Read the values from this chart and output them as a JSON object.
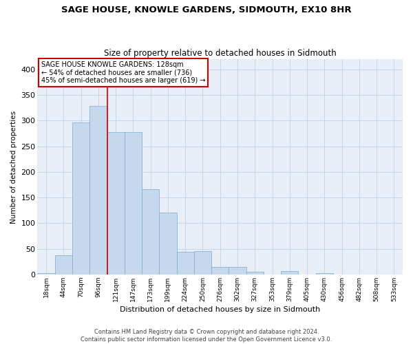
{
  "title": "SAGE HOUSE, KNOWLE GARDENS, SIDMOUTH, EX10 8HR",
  "subtitle": "Size of property relative to detached houses in Sidmouth",
  "xlabel": "Distribution of detached houses by size in Sidmouth",
  "ylabel": "Number of detached properties",
  "bar_color": "#c5d8ee",
  "bar_edgecolor": "#7aabcc",
  "grid_color": "#c8d4e8",
  "background_color": "#e8eef8",
  "annotation_line_color": "#cc0000",
  "categories": [
    "18sqm",
    "44sqm",
    "70sqm",
    "96sqm",
    "121sqm",
    "147sqm",
    "173sqm",
    "199sqm",
    "224sqm",
    "250sqm",
    "276sqm",
    "302sqm",
    "327sqm",
    "353sqm",
    "379sqm",
    "405sqm",
    "430sqm",
    "456sqm",
    "482sqm",
    "508sqm",
    "533sqm"
  ],
  "values": [
    3,
    37,
    296,
    329,
    278,
    278,
    166,
    121,
    44,
    46,
    14,
    15,
    5,
    0,
    6,
    0,
    2,
    0,
    0,
    0,
    0
  ],
  "values_corrected": [
    3,
    37,
    296,
    329,
    278,
    278,
    166,
    121,
    44,
    46,
    14,
    15,
    5,
    6,
    0,
    2,
    0,
    0,
    0,
    0,
    0
  ],
  "annotation_text": "SAGE HOUSE KNOWLE GARDENS: 128sqm\n← 54% of detached houses are smaller (736)\n45% of semi-detached houses are larger (619) →",
  "annotation_vline_x": 3.5,
  "ylim": [
    0,
    420
  ],
  "yticks": [
    0,
    50,
    100,
    150,
    200,
    250,
    300,
    350,
    400
  ],
  "footer_line1": "Contains HM Land Registry data © Crown copyright and database right 2024.",
  "footer_line2": "Contains public sector information licensed under the Open Government Licence v3.0."
}
